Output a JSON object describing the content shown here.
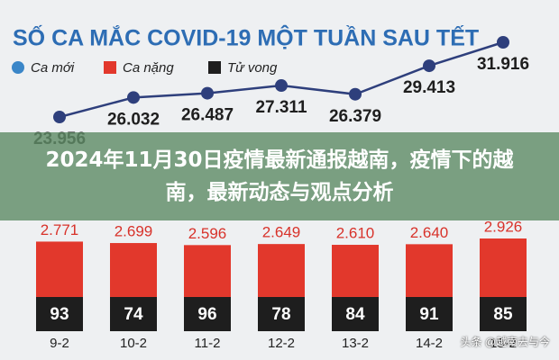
{
  "chart_data": {
    "type": "line-bar",
    "title": "SỐ CA MẮC COVID-19 MỘT TUẦN SAU TẾT",
    "categories": [
      "9-2",
      "10-2",
      "11-2",
      "12-2",
      "13-2",
      "14-2",
      "15-2"
    ],
    "series": [
      {
        "name": "Ca mới",
        "color": "#2e3f7c",
        "legend_color": "#3a86c8",
        "values": [
          23956,
          26032,
          26487,
          27311,
          26379,
          29413,
          31916
        ],
        "value_labels": [
          "23.956",
          "26.032",
          "26.487",
          "27.311",
          "26.379",
          "29.413",
          "31.916"
        ]
      },
      {
        "name": "Ca nặng",
        "color": "#e2382c",
        "values": [
          2771,
          2699,
          2596,
          2649,
          2610,
          2640,
          2926
        ],
        "value_labels": [
          "2.771",
          "2.699",
          "2.596",
          "2.649",
          "2.610",
          "2.640",
          "2.926"
        ]
      },
      {
        "name": "Tử vong",
        "color": "#1e1e1e",
        "values": [
          93,
          74,
          96,
          78,
          84,
          91,
          85
        ]
      }
    ]
  },
  "overlay": {
    "headline": "2024年11月30日疫情最新通报越南，疫情下的越南，最新动态与观点分析",
    "watermark": "头条 @越南去与今"
  }
}
